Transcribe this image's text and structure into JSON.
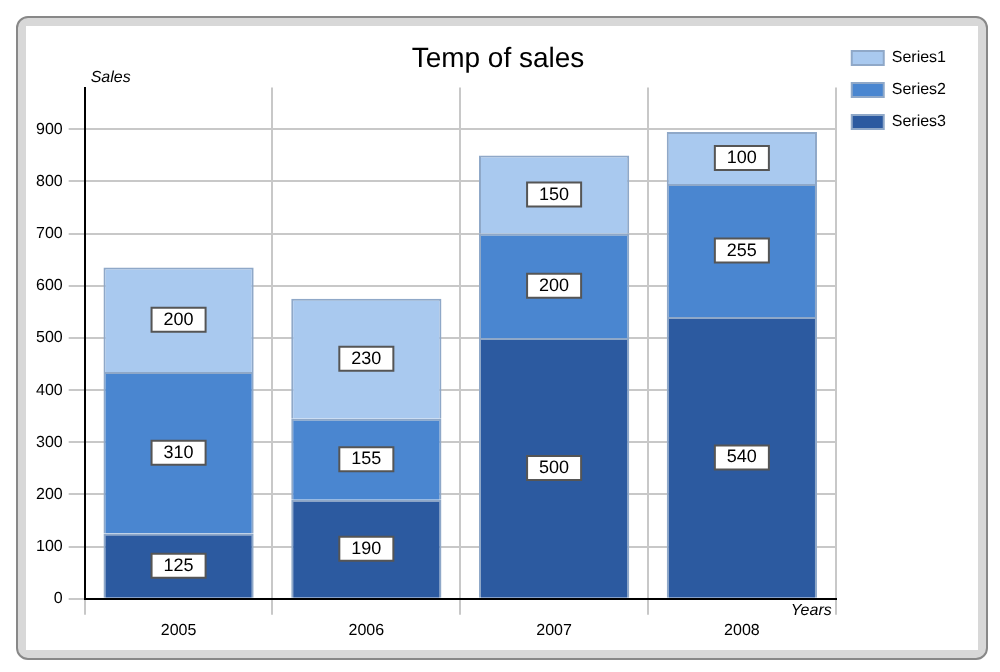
{
  "chart_data": {
    "type": "bar",
    "title": "Temp of sales",
    "xlabel": "Years",
    "ylabel": "Sales",
    "categories": [
      "2005",
      "2006",
      "2007",
      "2008"
    ],
    "stacked": true,
    "series": [
      {
        "name": "Series3",
        "color": "#2c5aa0",
        "values": [
          125,
          190,
          500,
          540
        ]
      },
      {
        "name": "Series2",
        "color": "#4a86d0",
        "values": [
          310,
          155,
          200,
          255
        ]
      },
      {
        "name": "Series1",
        "color": "#a9c9ef",
        "values": [
          200,
          230,
          150,
          100
        ]
      }
    ],
    "ylim": [
      0,
      980
    ],
    "yticks": [
      0,
      100,
      200,
      300,
      400,
      500,
      600,
      700,
      800,
      900
    ],
    "grid": true,
    "legend": "top right",
    "data_labels": true
  }
}
